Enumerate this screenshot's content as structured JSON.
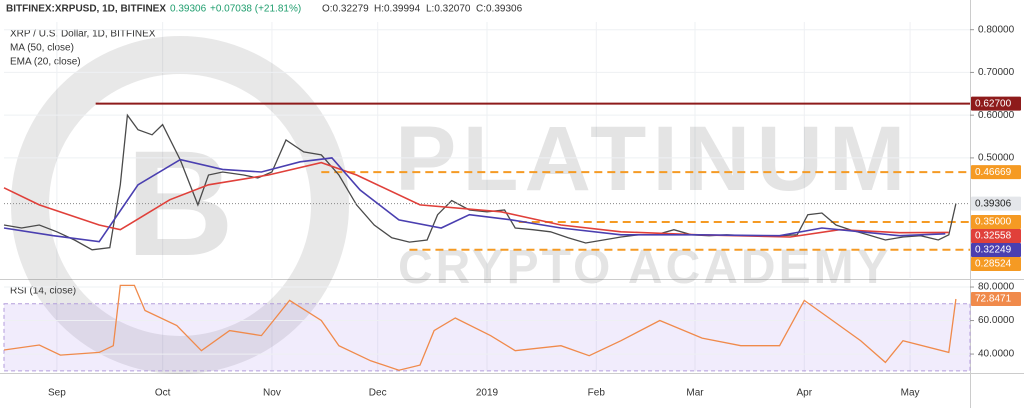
{
  "header": {
    "symbol": "BITFINEX:XRPUSD, 1D, BITFINEX",
    "last": "0.39306",
    "change": "+0.07038 (+21.81%)",
    "open": "O:0.32279",
    "high": "H:0.39994",
    "low": "L:0.32070",
    "close": "C:0.39306"
  },
  "watermark": {
    "line1": "PLATINUM",
    "line2": "CRYPTO ACADEMY"
  },
  "chart_data": [
    {
      "type": "line",
      "title": "XRP / U.S. Dollar, 1D, BITFINEX",
      "xlim": [
        0,
        274
      ],
      "ylim": [
        0.219,
        0.818
      ],
      "xticks": [
        {
          "value": 15,
          "label": "Sep"
        },
        {
          "value": 45,
          "label": "Oct"
        },
        {
          "value": 76,
          "label": "Nov"
        },
        {
          "value": 106,
          "label": "Dec"
        },
        {
          "value": 137,
          "label": "2019"
        },
        {
          "value": 168,
          "label": "Feb"
        },
        {
          "value": 196,
          "label": "Mar"
        },
        {
          "value": 227,
          "label": "Apr"
        },
        {
          "value": 257,
          "label": "May"
        }
      ],
      "yticks": [
        {
          "value": 0.8,
          "label": "0.80000"
        },
        {
          "value": 0.7,
          "label": "0.70000"
        },
        {
          "value": 0.6,
          "label": "0.60000"
        },
        {
          "value": 0.5,
          "label": "0.50000"
        }
      ],
      "grid": true,
      "series": [
        {
          "name": "XRP / U.S. Dollar, 1D, BITFINEX",
          "color": "#4a4a4a",
          "x": [
            0,
            5,
            10,
            15,
            20,
            25,
            30,
            33,
            35,
            38,
            42,
            45,
            50,
            55,
            58,
            62,
            68,
            72,
            76,
            80,
            85,
            90,
            95,
            100,
            105,
            110,
            115,
            120,
            123,
            127,
            132,
            137,
            142,
            145,
            150,
            155,
            160,
            165,
            170,
            175,
            180,
            185,
            190,
            195,
            200,
            205,
            210,
            215,
            220,
            225,
            228,
            232,
            236,
            240,
            245,
            250,
            255,
            260,
            265,
            268,
            270
          ],
          "values": [
            0.343,
            0.336,
            0.343,
            0.327,
            0.308,
            0.285,
            0.29,
            0.437,
            0.6,
            0.566,
            0.554,
            0.578,
            0.495,
            0.39,
            0.46,
            0.467,
            0.46,
            0.453,
            0.467,
            0.542,
            0.514,
            0.507,
            0.46,
            0.39,
            0.343,
            0.313,
            0.303,
            0.308,
            0.367,
            0.4,
            0.378,
            0.374,
            0.378,
            0.336,
            0.332,
            0.327,
            0.313,
            0.301,
            0.308,
            0.315,
            0.32,
            0.32,
            0.332,
            0.32,
            0.318,
            0.32,
            0.318,
            0.318,
            0.318,
            0.32,
            0.367,
            0.371,
            0.343,
            0.332,
            0.32,
            0.308,
            0.315,
            0.318,
            0.308,
            0.32,
            0.39306
          ],
          "last_value": 0.39306,
          "last_label": "0.39306"
        },
        {
          "name": "MA (50, close)",
          "color": "#e0403a",
          "x": [
            0,
            10,
            27,
            33,
            47,
            58,
            75,
            90,
            100,
            118,
            141,
            158,
            175,
            197,
            223,
            237,
            254,
            268
          ],
          "values": [
            0.43,
            0.39,
            0.343,
            0.332,
            0.402,
            0.437,
            0.46,
            0.489,
            0.46,
            0.39,
            0.374,
            0.343,
            0.327,
            0.32,
            0.315,
            0.332,
            0.325,
            0.32558
          ],
          "last_value": 0.32558,
          "last_label": "0.32558"
        },
        {
          "name": "EMA (20, close)",
          "color": "#4a3fb0",
          "x": [
            0,
            14,
            27,
            38,
            50,
            62,
            73,
            84,
            93,
            101,
            112,
            124,
            132,
            144,
            158,
            175,
            197,
            220,
            232,
            243,
            254,
            267
          ],
          "values": [
            0.336,
            0.318,
            0.304,
            0.437,
            0.496,
            0.473,
            0.467,
            0.491,
            0.5,
            0.425,
            0.355,
            0.336,
            0.367,
            0.355,
            0.336,
            0.32,
            0.32,
            0.318,
            0.336,
            0.327,
            0.318,
            0.32249
          ],
          "last_value": 0.32249,
          "last_label": "0.32249"
        }
      ],
      "levels": [
        {
          "value": 0.627,
          "label": "0.62700",
          "color": "#8e1b1b",
          "style": "solid",
          "x_start": 26
        },
        {
          "value": 0.46669,
          "label": "0.46669",
          "color": "#f59a23",
          "style": "dashed",
          "x_start": 90
        },
        {
          "value": 0.35,
          "label": "0.35000",
          "color": "#f59a23",
          "style": "dashed",
          "x_start": 146
        },
        {
          "value": 0.28524,
          "label": "0.28524",
          "color": "#f59a23",
          "style": "dashed",
          "x_start": 115
        }
      ]
    },
    {
      "type": "line",
      "title": "RSI (14, close)",
      "ylim": [
        29.3,
        83
      ],
      "band": [
        30,
        70
      ],
      "yticks": [
        {
          "value": 80,
          "label": "80.0000"
        },
        {
          "value": 60,
          "label": "60.0000"
        },
        {
          "value": 40,
          "label": "40.0000"
        }
      ],
      "series": [
        {
          "name": "RSI (14, close)",
          "color": "#f08a4b",
          "x": [
            0,
            10,
            16,
            27,
            31,
            33,
            37,
            40,
            49,
            56,
            64,
            73,
            81,
            90,
            95,
            104,
            112,
            118,
            122,
            128,
            138,
            145,
            158,
            166,
            175,
            186,
            198,
            209,
            220,
            227,
            234,
            243,
            250,
            255,
            268,
            270
          ],
          "values": [
            42.4,
            45.4,
            39.4,
            41,
            45,
            81,
            81,
            66,
            57,
            42,
            54,
            51,
            72,
            60,
            45,
            36,
            30.4,
            33.4,
            54,
            61.5,
            51,
            42,
            45,
            39,
            48,
            60,
            49.5,
            45,
            45,
            72,
            61.5,
            48,
            35,
            48,
            41,
            72.8471
          ],
          "last_value": 72.8471,
          "last_label": "72.8471"
        }
      ]
    }
  ]
}
